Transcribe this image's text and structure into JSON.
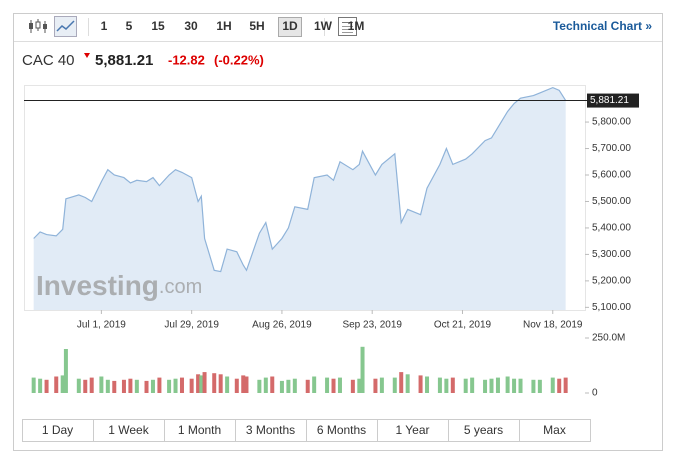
{
  "toolbar": {
    "intervals": [
      "1",
      "5",
      "15",
      "30",
      "1H",
      "5H",
      "1D",
      "1W",
      "1M"
    ],
    "active": "1D",
    "link": "Technical Chart »"
  },
  "header": {
    "name": "CAC 40",
    "price": "5,881.21",
    "change": "-12.82",
    "change_pct": "(-0.22%)"
  },
  "watermark": {
    "brand": "Investing",
    "suffix": ".com"
  },
  "range_buttons": [
    "1 Day",
    "1 Week",
    "1 Month",
    "3 Months",
    "6 Months",
    "1 Year",
    "5 years",
    "Max"
  ],
  "chart_data": [
    {
      "type": "line",
      "x": [
        "2019-06-10",
        "2019-06-12",
        "2019-06-14",
        "2019-06-17",
        "2019-06-19",
        "2019-06-20",
        "2019-06-24",
        "2019-06-26",
        "2019-06-28",
        "2019-07-01",
        "2019-07-03",
        "2019-07-05",
        "2019-07-08",
        "2019-07-10",
        "2019-07-12",
        "2019-07-15",
        "2019-07-17",
        "2019-07-19",
        "2019-07-22",
        "2019-07-24",
        "2019-07-26",
        "2019-07-29",
        "2019-07-31",
        "2019-08-01",
        "2019-08-02",
        "2019-08-05",
        "2019-08-07",
        "2019-08-09",
        "2019-08-12",
        "2019-08-14",
        "2019-08-15",
        "2019-08-19",
        "2019-08-21",
        "2019-08-23",
        "2019-08-26",
        "2019-08-28",
        "2019-08-30",
        "2019-09-03",
        "2019-09-05",
        "2019-09-09",
        "2019-09-11",
        "2019-09-13",
        "2019-09-17",
        "2019-09-19",
        "2019-09-20",
        "2019-09-24",
        "2019-09-26",
        "2019-09-30",
        "2019-10-02",
        "2019-10-04",
        "2019-10-08",
        "2019-10-10",
        "2019-10-14",
        "2019-10-16",
        "2019-10-18",
        "2019-10-22",
        "2019-10-24",
        "2019-10-28",
        "2019-10-30",
        "2019-11-01",
        "2019-11-04",
        "2019-11-06",
        "2019-11-08",
        "2019-11-12",
        "2019-11-14",
        "2019-11-18",
        "2019-11-20",
        "2019-11-22"
      ],
      "values": [
        5360,
        5385,
        5375,
        5370,
        5395,
        5510,
        5525,
        5515,
        5500,
        5575,
        5620,
        5600,
        5590,
        5570,
        5580,
        5575,
        5590,
        5560,
        5600,
        5620,
        5610,
        5590,
        5500,
        5520,
        5360,
        5240,
        5235,
        5320,
        5310,
        5260,
        5240,
        5380,
        5420,
        5320,
        5360,
        5400,
        5480,
        5470,
        5590,
        5600,
        5580,
        5650,
        5620,
        5640,
        5690,
        5600,
        5640,
        5680,
        5420,
        5470,
        5450,
        5550,
        5640,
        5700,
        5640,
        5660,
        5680,
        5730,
        5740,
        5780,
        5840,
        5870,
        5890,
        5900,
        5910,
        5930,
        5920,
        5881.21
      ],
      "color": "#8fb3d9",
      "fill": "#e1ebf6",
      "xlim": [
        "2019-06-07",
        "2019-11-28"
      ],
      "xticks": [
        {
          "value": "2019-07-01",
          "label": "Jul 1, 2019"
        },
        {
          "value": "2019-07-29",
          "label": "Jul 29, 2019"
        },
        {
          "value": "2019-08-26",
          "label": "Aug 26, 2019"
        },
        {
          "value": "2019-09-23",
          "label": "Sep 23, 2019"
        },
        {
          "value": "2019-10-21",
          "label": "Oct 21, 2019"
        },
        {
          "value": "2019-11-18",
          "label": "Nov 18, 2019"
        }
      ],
      "ylim": [
        5090,
        5940
      ],
      "yticks": [
        {
          "value": 5100,
          "label": "5,100.00"
        },
        {
          "value": 5200,
          "label": "5,200.00"
        },
        {
          "value": 5300,
          "label": "5,300.00"
        },
        {
          "value": 5400,
          "label": "5,400.00"
        },
        {
          "value": 5500,
          "label": "5,500.00"
        },
        {
          "value": 5600,
          "label": "5,600.00"
        },
        {
          "value": 5700,
          "label": "5,700.00"
        },
        {
          "value": 5800,
          "label": "5,800.00"
        }
      ],
      "last_price": {
        "value": 5881.21,
        "label": "5,881.21"
      }
    },
    {
      "type": "bar",
      "values": [
        70,
        65,
        60,
        75,
        80,
        200,
        65,
        60,
        70,
        75,
        60,
        55,
        60,
        65,
        60,
        55,
        60,
        70,
        60,
        65,
        70,
        65,
        85,
        80,
        95,
        90,
        85,
        75,
        65,
        80,
        75,
        60,
        70,
        75,
        55,
        60,
        65,
        60,
        75,
        70,
        65,
        70,
        60,
        65,
        210,
        65,
        70,
        70,
        95,
        85,
        80,
        75,
        70,
        65,
        70,
        65,
        70,
        60,
        65,
        70,
        75,
        65,
        65,
        60,
        60,
        70,
        65,
        70
      ],
      "up_color": "#86c78f",
      "down_color": "#d46a6a",
      "ylim": [
        0,
        250
      ],
      "yticks": [
        0,
        {
          "value": 250,
          "label": "250.0M"
        }
      ]
    }
  ]
}
